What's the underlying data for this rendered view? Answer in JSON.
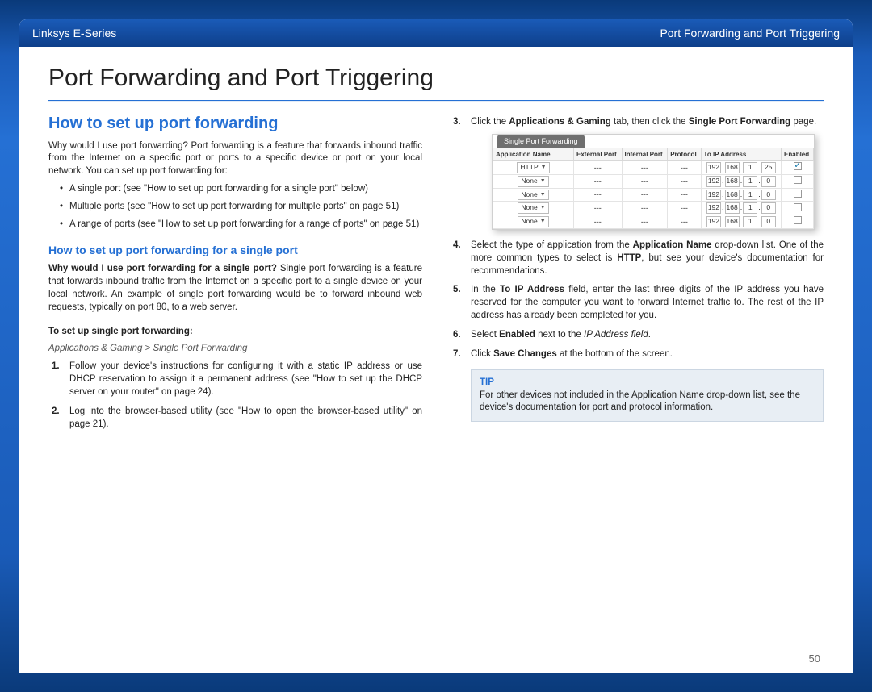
{
  "header": {
    "left": "Linksys E-Series",
    "right": "Port Forwarding and Port Triggering"
  },
  "title": "Port Forwarding and Port Triggering",
  "page_number": "50",
  "left_col": {
    "h2": "How to set up port forwarding",
    "intro": "Why would I use port forwarding? Port forwarding is a feature that forwards inbound traffic from the Internet on a specific port or ports to a specific device or port on your local network. You can set up port forwarding for:",
    "bullets": [
      "A single port (see \"How to set up port forwarding for a single port\" below)",
      "Multiple ports (see \"How to set up port forwarding for multiple ports\" on page 51)",
      "A range of ports (see \"How to set up port forwarding for a range of ports\" on page 51)"
    ],
    "h3": "How to set up port forwarding for a single port",
    "single_lead": "Why would I use port forwarding for a single port?",
    "single_body": " Single port forwarding is a feature that forwards inbound traffic from the Internet on a specific port to a single device on your local network. An example of single port forwarding would be to forward inbound web requests, typically on port 80, to a web server.",
    "setup_head": "To set up single port forwarding:",
    "breadcrumb": "Applications & Gaming > Single Port Forwarding",
    "steps": [
      "Follow your device's instructions for configuring it with a static IP address or use DHCP reservation to assign it a permanent address (see \"How to set up the DHCP server on your router\" on page 24).",
      "Log into the browser-based utility (see \"How to open the browser-based utility\" on page 21)."
    ]
  },
  "right_col": {
    "step3_pre": "Click the ",
    "step3_b1": "Applications & Gaming",
    "step3_mid": " tab, then click the ",
    "step3_b2": "Single Port Forwarding",
    "step3_post": " page.",
    "step4_pre": "Select the type of application from the ",
    "step4_b1": "Application Name",
    "step4_mid": " drop-down list. One of the more common types to select is ",
    "step4_b2": "HTTP",
    "step4_post": ", but see your device's documentation for recommendations.",
    "step5_pre": "In the ",
    "step5_b1": "To IP Address",
    "step5_post": " field, enter the last three digits of the IP address you have reserved for the computer you want to forward Internet traffic to. The rest of the IP address has already been completed for you.",
    "step6_pre": "Select ",
    "step6_b1": "Enabled",
    "step6_mid": " next to the ",
    "step6_i": "IP Address field",
    "step6_post": ".",
    "step7_pre": "Click ",
    "step7_b1": "Save Changes",
    "step7_post": " at the bottom of the screen.",
    "tip_title": "TIP",
    "tip_body": "For other devices not included in the Application Name drop-down list, see the device's documentation for port and protocol information."
  },
  "ui": {
    "tab": "Single Port Forwarding",
    "headers": [
      "Application Name",
      "External Port",
      "Internal Port",
      "Protocol",
      "To IP Address",
      "Enabled"
    ],
    "rows": [
      {
        "app": "HTTP",
        "ext": "---",
        "int": "---",
        "proto": "---",
        "ip": [
          "192",
          "168",
          "1",
          "25"
        ],
        "on": true
      },
      {
        "app": "None",
        "ext": "---",
        "int": "---",
        "proto": "---",
        "ip": [
          "192",
          "168",
          "1",
          "0"
        ],
        "on": false
      },
      {
        "app": "None",
        "ext": "---",
        "int": "---",
        "proto": "---",
        "ip": [
          "192",
          "168",
          "1",
          "0"
        ],
        "on": false
      },
      {
        "app": "None",
        "ext": "---",
        "int": "---",
        "proto": "---",
        "ip": [
          "192",
          "168",
          "1",
          "0"
        ],
        "on": false
      },
      {
        "app": "None",
        "ext": "---",
        "int": "---",
        "proto": "---",
        "ip": [
          "192",
          "168",
          "1",
          "0"
        ],
        "on": false
      }
    ]
  }
}
